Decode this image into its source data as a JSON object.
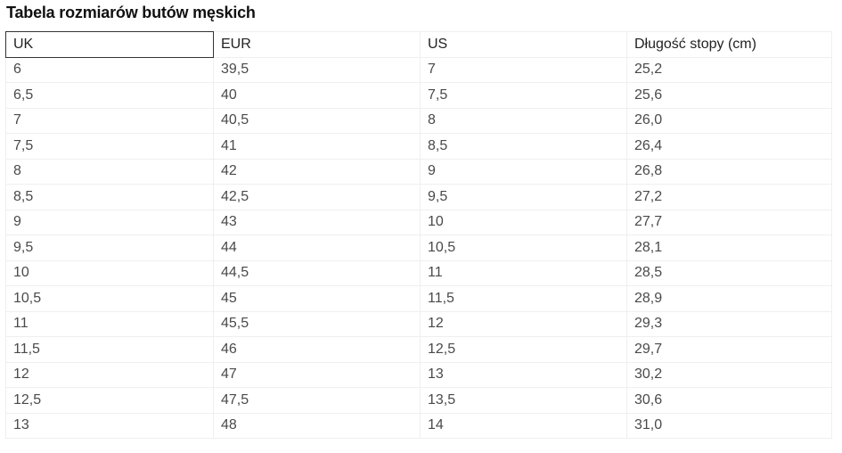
{
  "title": "Tabela rozmiarów butów męskich",
  "headers": [
    "UK",
    "EUR",
    "US",
    "Długość stopy (cm)"
  ],
  "rows": [
    [
      "6",
      "39,5",
      "7",
      "25,2"
    ],
    [
      "6,5",
      "40",
      "7,5",
      "25,6"
    ],
    [
      "7",
      "40,5",
      "8",
      "26,0"
    ],
    [
      "7,5",
      "41",
      "8,5",
      "26,4"
    ],
    [
      "8",
      "42",
      "9",
      "26,8"
    ],
    [
      "8,5",
      "42,5",
      "9,5",
      "27,2"
    ],
    [
      "9",
      "43",
      "10",
      "27,7"
    ],
    [
      "9,5",
      "44",
      "10,5",
      "28,1"
    ],
    [
      "10",
      "44,5",
      "11",
      "28,5"
    ],
    [
      "10,5",
      "45",
      "11,5",
      "28,9"
    ],
    [
      "11",
      "45,5",
      "12",
      "29,3"
    ],
    [
      "11,5",
      "46",
      "12,5",
      "29,7"
    ],
    [
      "12",
      "47",
      "13",
      "30,2"
    ],
    [
      "12,5",
      "47,5",
      "13,5",
      "30,6"
    ],
    [
      "13",
      "48",
      "14",
      "31,0"
    ]
  ]
}
